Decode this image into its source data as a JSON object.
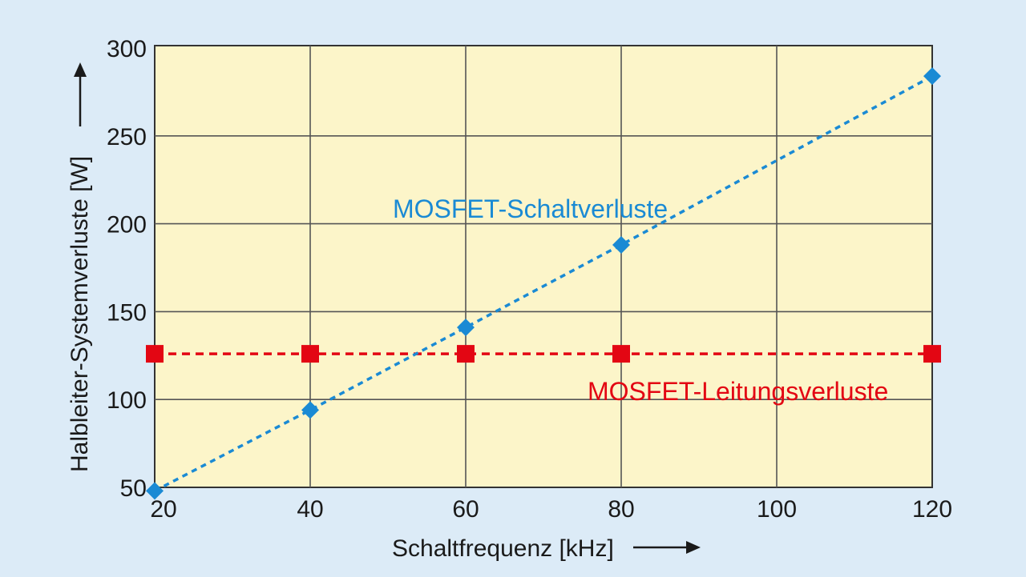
{
  "chart_data": {
    "type": "line",
    "xlabel": "Schaltfrequenz [kHz]",
    "ylabel": "Halbleiter-Systemverluste [W]",
    "xlim": [
      20,
      120
    ],
    "ylim": [
      50,
      300
    ],
    "x_ticks": [
      20,
      40,
      60,
      80,
      100,
      120
    ],
    "y_ticks": [
      50,
      100,
      150,
      200,
      250,
      300
    ],
    "grid": true,
    "legend": "inline labels",
    "series": [
      {
        "name": "MOSFET-Schaltverluste",
        "color": "#1a8ad4",
        "marker": "diamond",
        "line_style": "dotted",
        "x": [
          20,
          40,
          60,
          80,
          120
        ],
        "y": [
          48,
          94,
          141,
          188,
          284
        ]
      },
      {
        "name": "MOSFET-Leitungsverluste",
        "color": "#e30613",
        "marker": "square",
        "line_style": "dashed",
        "x": [
          20,
          40,
          60,
          80,
          120
        ],
        "y": [
          126,
          126,
          126,
          126,
          126
        ]
      }
    ]
  },
  "colors": {
    "background": "#dcebf7",
    "plot_area": "#fcf5c9",
    "grid": "#555555"
  }
}
